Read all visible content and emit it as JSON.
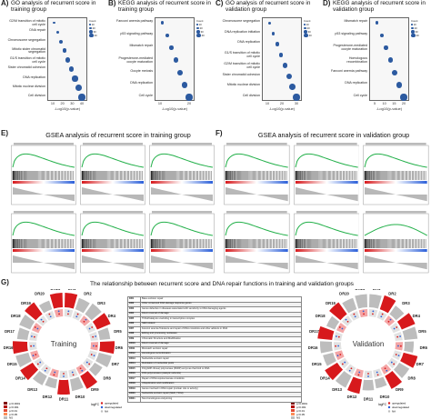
{
  "panels": {
    "A": {
      "letter": "A)",
      "title": "GO analysis of recurrent score in training group",
      "terms": [
        "G2/M transition of mitotic cell cycle",
        "DNA repair",
        "Chromosome segregation",
        "Mitotic sister chromatid segregation",
        "G1/S transition of mitotic cell cycle",
        "Sister chromatid cohesion",
        "DNA replication",
        "Mitotic nuclear division",
        "Cell division"
      ],
      "xticks": [
        "10",
        "20",
        "30",
        "40"
      ],
      "xlabel": "-Log10(p-value)"
    },
    "B": {
      "letter": "B)",
      "title": "KEGG analysis of recurrent score in training group",
      "terms": [
        "Fanconi anemia pathway",
        "p53 signaling pathway",
        "Mismatch repair",
        "Progesterone-mediated oocyte maturation",
        "Oocyte meiosis",
        "DNA replication",
        "Cell cycle"
      ],
      "xticks": [
        "10",
        "20"
      ],
      "xlabel": "-Log10(p-value)"
    },
    "C": {
      "letter": "C)",
      "title": "GO analysis of recurrent score in validation group",
      "terms": [
        "Chromosome segregation",
        "DNA replication initiation",
        "DNA replication",
        "G1/S transition of mitotic cell cycle",
        "G2/M transition of mitotic cell cycle",
        "Sister chromatid cohesion",
        "Mitotic nuclear division",
        "Cell division"
      ],
      "xticks": [
        "10",
        "20",
        "30"
      ],
      "xlabel": "-Log10(p-value)"
    },
    "D": {
      "letter": "D)",
      "title": "KEGG analysis of recurrent score in validation group",
      "terms": [
        "Mismatch repair",
        "p53 signaling pathway",
        "Progesterone-mediated oocyte maturation",
        "Homologous recombination",
        "Fanconi anemia pathway",
        "DNA replication",
        "Cell cycle"
      ],
      "xticks": [
        "5",
        "10",
        "15",
        "20"
      ],
      "xlabel": "-Log10(p-value)"
    },
    "E": {
      "letter": "E)",
      "title": "GSEA analysis of recurrent score in training group"
    },
    "F": {
      "letter": "F)",
      "title": "GSEA analysis of recurrent score in validation group"
    },
    "G": {
      "letter": "G)",
      "title": "The relationship between recurrent score and DNA repair functions in training and validation groups",
      "left_label": "Training",
      "right_label": "Validation"
    }
  },
  "legend_count": {
    "title": "Count",
    "items": [
      "10",
      "20",
      "30",
      "40"
    ]
  },
  "table": {
    "rows": [
      [
        "DR1",
        "Base excision repair"
      ],
      [
        "DR2",
        "Other conserved DNA damage response genes"
      ],
      [
        "DR3",
        "Genes defective in diseases associated with sensitivity to DNA damaging agents"
      ],
      [
        "DR4",
        "Direct reversal of damage"
      ],
      [
        "DR5",
        "TFIIH/Catalysis unwinding in transcription complex"
      ],
      [
        "DR6",
        "NER-related"
      ],
      [
        "DR7",
        "Fanconi anemia Tolerance and repair of DNA crosslinks and other adducts in DNA"
      ],
      [
        "DR8",
        "Editing and processing nucleases"
      ],
      [
        "DR9",
        "Chromatin Structure and Modification"
      ],
      [
        "DR10",
        "Direct reversal of damage"
      ],
      [
        "DR11",
        "Mismatch excision repair"
      ],
      [
        "DR12",
        "Homologous recombination"
      ],
      [
        "DR13",
        "Nucleotide excision repair"
      ],
      [
        "DR14",
        "Modulation of nucleotide pools"
      ],
      [
        "DR15",
        "Poly(ADP-ribose) polymerase (PARP) enzymes that bind to DNA"
      ],
      [
        "DR16",
        "DNA polymerases (catalytic subunits)"
      ],
      [
        "DR17",
        "Repair of DNA-topoisomerase crosslinks"
      ],
      [
        "DR18",
        "Ubiquitination and modification"
      ],
      [
        "DR19",
        "Genes involved in DNA repair (unclear role or activity)"
      ],
      [
        "DR20",
        "Nucleotide excision repair (NER, TFIIH)"
      ],
      [
        "DR21",
        "Non-homologous end-joining"
      ]
    ]
  },
  "ring_labels": [
    "DR1",
    "DR2",
    "DR3",
    "DR4",
    "DR5",
    "DR6",
    "DR7",
    "DR8",
    "DR9",
    "DR10",
    "DR11",
    "DR12",
    "DR13",
    "DR14",
    "DR15",
    "DR16",
    "DR17",
    "DR18",
    "DR19",
    "DR20",
    "DR21"
  ],
  "g_legend": {
    "pval_title": "",
    "pval_items": [
      "p<0.0001",
      "p<0.001",
      "p<0.01",
      "p<0.05"
    ],
    "ns": "NS",
    "logfc": "logFC",
    "up": "upregulated",
    "down": "downregulated",
    "na": "NA"
  },
  "colors": {
    "accent_red": "#d7191c",
    "blue_dot": "#2c5aa0",
    "green_curve": "#23b04a"
  }
}
